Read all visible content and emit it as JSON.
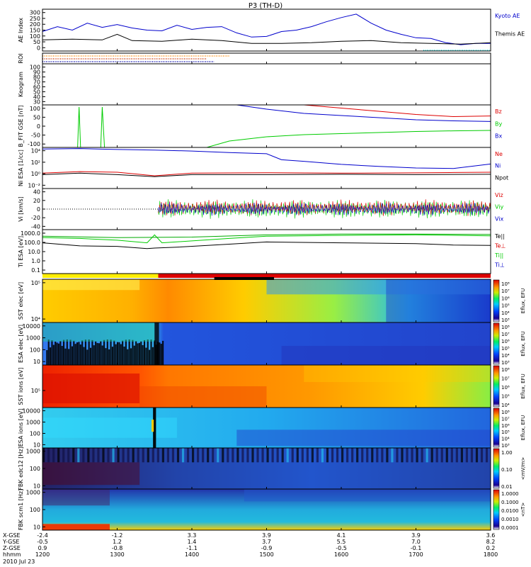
{
  "header": {
    "title": "P3 (TH-D)"
  },
  "colors": {
    "kyoto": "#0000cc",
    "themis": "#000000",
    "red": "#dd0000",
    "green": "#00cc00",
    "blue": "#0000cc",
    "cyan": "#00cccc",
    "orange": "#ff8800"
  },
  "chart_data": [
    {
      "type": "line",
      "name": "ae",
      "ylabel": "AE Index",
      "ylim": [
        0,
        300
      ],
      "yticks": [
        "300",
        "250",
        "200",
        "150",
        "100",
        "50",
        "0"
      ],
      "series": [
        {
          "name": "Kyoto AE",
          "color": "#0000cc",
          "x": [
            12.0,
            12.2,
            12.4,
            12.6,
            12.8,
            13.0,
            13.2,
            13.4,
            13.6,
            13.8,
            14.0,
            14.2,
            14.4,
            14.6,
            14.8,
            15.0,
            15.2,
            15.4,
            15.6,
            15.8,
            16.0,
            16.2,
            16.4,
            16.6,
            16.8,
            17.0,
            17.2,
            17.4,
            17.6,
            17.8,
            18.0
          ],
          "y": [
            140,
            175,
            150,
            200,
            170,
            190,
            165,
            150,
            145,
            185,
            155,
            170,
            175,
            130,
            100,
            105,
            140,
            150,
            175,
            210,
            240,
            265,
            200,
            150,
            120,
            95,
            90,
            60,
            45,
            55,
            55
          ]
        },
        {
          "name": "Themis AE",
          "color": "#000000",
          "x": [
            12.0,
            12.4,
            12.8,
            13.0,
            13.2,
            13.6,
            14.0,
            14.4,
            14.8,
            15.2,
            15.6,
            16.0,
            16.4,
            16.8,
            17.2,
            17.6,
            18.0
          ],
          "y": [
            80,
            85,
            80,
            120,
            75,
            70,
            85,
            75,
            55,
            55,
            60,
            70,
            75,
            60,
            55,
            50,
            60
          ]
        }
      ]
    },
    {
      "type": "timeline",
      "name": "roi",
      "ylabel": "ROI"
    },
    {
      "type": "line",
      "name": "keogram",
      "ylabel": "Keogram",
      "yticks": [
        "100",
        "90",
        "80",
        "70",
        "60",
        "50",
        "40",
        "30"
      ]
    },
    {
      "type": "line",
      "name": "bfield",
      "ylabel": "B_FIT GSE [nT]",
      "ylim": [
        -100,
        100
      ],
      "yticks": [
        "100",
        "50",
        "0",
        "-50",
        "-100"
      ],
      "series": [
        {
          "name": "Bz",
          "color": "#dd0000",
          "x": [
            15.5,
            16.0,
            16.5,
            17.0,
            17.5,
            18.0
          ],
          "y": [
            100,
            85,
            70,
            55,
            45,
            48
          ]
        },
        {
          "name": "By",
          "color": "#00cc00",
          "x": [
            12.47,
            12.49,
            12.51,
            12.78,
            12.8,
            12.83,
            14.2,
            14.5,
            15.0,
            15.5,
            16.0,
            16.5,
            17.0,
            17.5,
            18.0
          ],
          "y": [
            -100,
            90,
            -100,
            -100,
            90,
            -100,
            -100,
            -70,
            -50,
            -40,
            -35,
            -30,
            -25,
            -22,
            -20
          ]
        },
        {
          "name": "Bx",
          "color": "#0000cc",
          "x": [
            14.6,
            15.0,
            15.5,
            16.0,
            16.5,
            17.0,
            17.5,
            18.0
          ],
          "y": [
            100,
            80,
            60,
            50,
            40,
            30,
            25,
            22
          ]
        }
      ]
    },
    {
      "type": "line",
      "name": "density",
      "ylabel": "Ni ESA [1/cc]",
      "ylog": true,
      "ylim": [
        0.001,
        100000
      ],
      "yticks": [
        "10⁴",
        "10²",
        "10⁰",
        "10⁻²"
      ],
      "series": [
        {
          "name": "Ne",
          "color": "#dd0000",
          "x": [
            12.0,
            12.5,
            13.0,
            13.5,
            14.0,
            15.0,
            16.0,
            17.0,
            17.5,
            18.0
          ],
          "y": [
            1,
            2,
            1.5,
            0.3,
            1,
            1.2,
            1,
            1.1,
            1.3,
            1.5
          ]
        },
        {
          "name": "Ni",
          "color": "#0000cc",
          "x": [
            12.0,
            12.5,
            13.0,
            13.5,
            14.0,
            14.5,
            15.0,
            15.2,
            15.5,
            16.0,
            16.5,
            17.0,
            17.5,
            18.0
          ],
          "y": [
            50000,
            60000,
            40000,
            30000,
            20000,
            10000,
            6000,
            400,
            200,
            50,
            20,
            10,
            8,
            60
          ]
        },
        {
          "name": "Npot",
          "color": "#000000",
          "x": [
            12.0,
            12.5,
            13.0,
            13.5,
            14.0,
            15.0,
            16.0,
            17.0,
            18.0
          ],
          "y": [
            0.5,
            1,
            0.5,
            0.2,
            0.5,
            0.5,
            0.6,
            0.5,
            0.6
          ]
        }
      ]
    },
    {
      "type": "line",
      "name": "vi",
      "ylabel": "Vi [km/s]",
      "ylim": [
        -50,
        50
      ],
      "yticks": [
        "40",
        "20",
        "0",
        "-20",
        "-40"
      ],
      "series": [
        {
          "name": "Viz",
          "color": "#dd0000"
        },
        {
          "name": "Viy",
          "color": "#00cc00"
        },
        {
          "name": "Vix",
          "color": "#0000cc"
        }
      ]
    },
    {
      "type": "line",
      "name": "temperature",
      "ylabel": "Ti ESA [eV]",
      "ylog": true,
      "ylim": [
        0.05,
        5000
      ],
      "yticks": [
        "1000.0",
        "100.0",
        "10.0",
        "1.0",
        "0.1"
      ],
      "series": [
        {
          "name": "Te||",
          "color": "#000000"
        },
        {
          "name": "Te⊥",
          "color": "#dd0000"
        },
        {
          "name": "Ti||",
          "color": "#00cc00"
        },
        {
          "name": "Ti⊥",
          "color": "#0000cc"
        }
      ]
    },
    {
      "type": "heatmap",
      "name": "sst-e",
      "ylabel": "SST elec [eV]",
      "yticks": [
        "10⁵",
        "10⁴"
      ]
    },
    {
      "type": "heatmap",
      "name": "esa-e",
      "ylabel": "ESA elec [eV]",
      "yticks": [
        "10000",
        "1000",
        "100",
        "10"
      ]
    },
    {
      "type": "heatmap",
      "name": "sst-i",
      "ylabel": "SST ions [eV]",
      "yticks": [
        "10⁵"
      ]
    },
    {
      "type": "heatmap",
      "name": "esa-i",
      "ylabel": "ESA ions [eV]",
      "yticks": [
        "10000",
        "1000",
        "100",
        "10"
      ]
    },
    {
      "type": "heatmap",
      "name": "fbk-e",
      "ylabel": "FBK edc12 [Hz]",
      "yticks": [
        "1000",
        "100",
        "10"
      ]
    },
    {
      "type": "heatmap",
      "name": "fbk-b",
      "ylabel": "FBK scm1 [Hz]",
      "yticks": [
        "1000",
        "100",
        "10"
      ]
    }
  ],
  "colorbars": [
    {
      "label": "Eflux, EFU",
      "ticks": [
        "10⁸",
        "10⁷",
        "10⁶",
        "10⁵",
        "10⁴",
        "10³"
      ]
    },
    {
      "label": "Eflux, EFU",
      "ticks": [
        "10⁸",
        "10⁷",
        "10⁶",
        "10⁵",
        "10⁴",
        "10³"
      ]
    },
    {
      "label": "Eflux, EFU",
      "ticks": [
        "10⁸",
        "10⁷",
        "10⁶",
        "10⁵",
        "10⁴"
      ]
    },
    {
      "label": "Eflux, EFU",
      "ticks": [
        "10⁸",
        "10⁷",
        "10⁶",
        "10⁵",
        "10⁴",
        "10³"
      ]
    },
    {
      "label": "<mV/m>",
      "ticks": [
        "1.00",
        "0.10",
        "0.01"
      ]
    },
    {
      "label": "<nT>",
      "ticks": [
        "1.0000",
        "0.1000",
        "0.0100",
        "0.0010",
        "0.0001"
      ]
    }
  ],
  "footer": {
    "rows": [
      {
        "label": "X-GSE",
        "values": [
          "-2.4",
          "-1.2",
          "3.3",
          "3.9",
          "4.1",
          "3.9",
          "3.6"
        ]
      },
      {
        "label": "Y-GSE",
        "values": [
          "-0.5",
          "1.2",
          "1.4",
          "3.7",
          "5.5",
          "7.0",
          "8.2"
        ]
      },
      {
        "label": "Z-GSE",
        "values": [
          "0.9",
          "-0.8",
          "-1.1",
          "-0.9",
          "-0.5",
          "-0.1",
          "0.2"
        ]
      },
      {
        "label": "hhmm",
        "values": [
          "1200",
          "1300",
          "1400",
          "1500",
          "1600",
          "1700",
          "1800"
        ]
      }
    ],
    "date": "2010 Jul 23"
  }
}
